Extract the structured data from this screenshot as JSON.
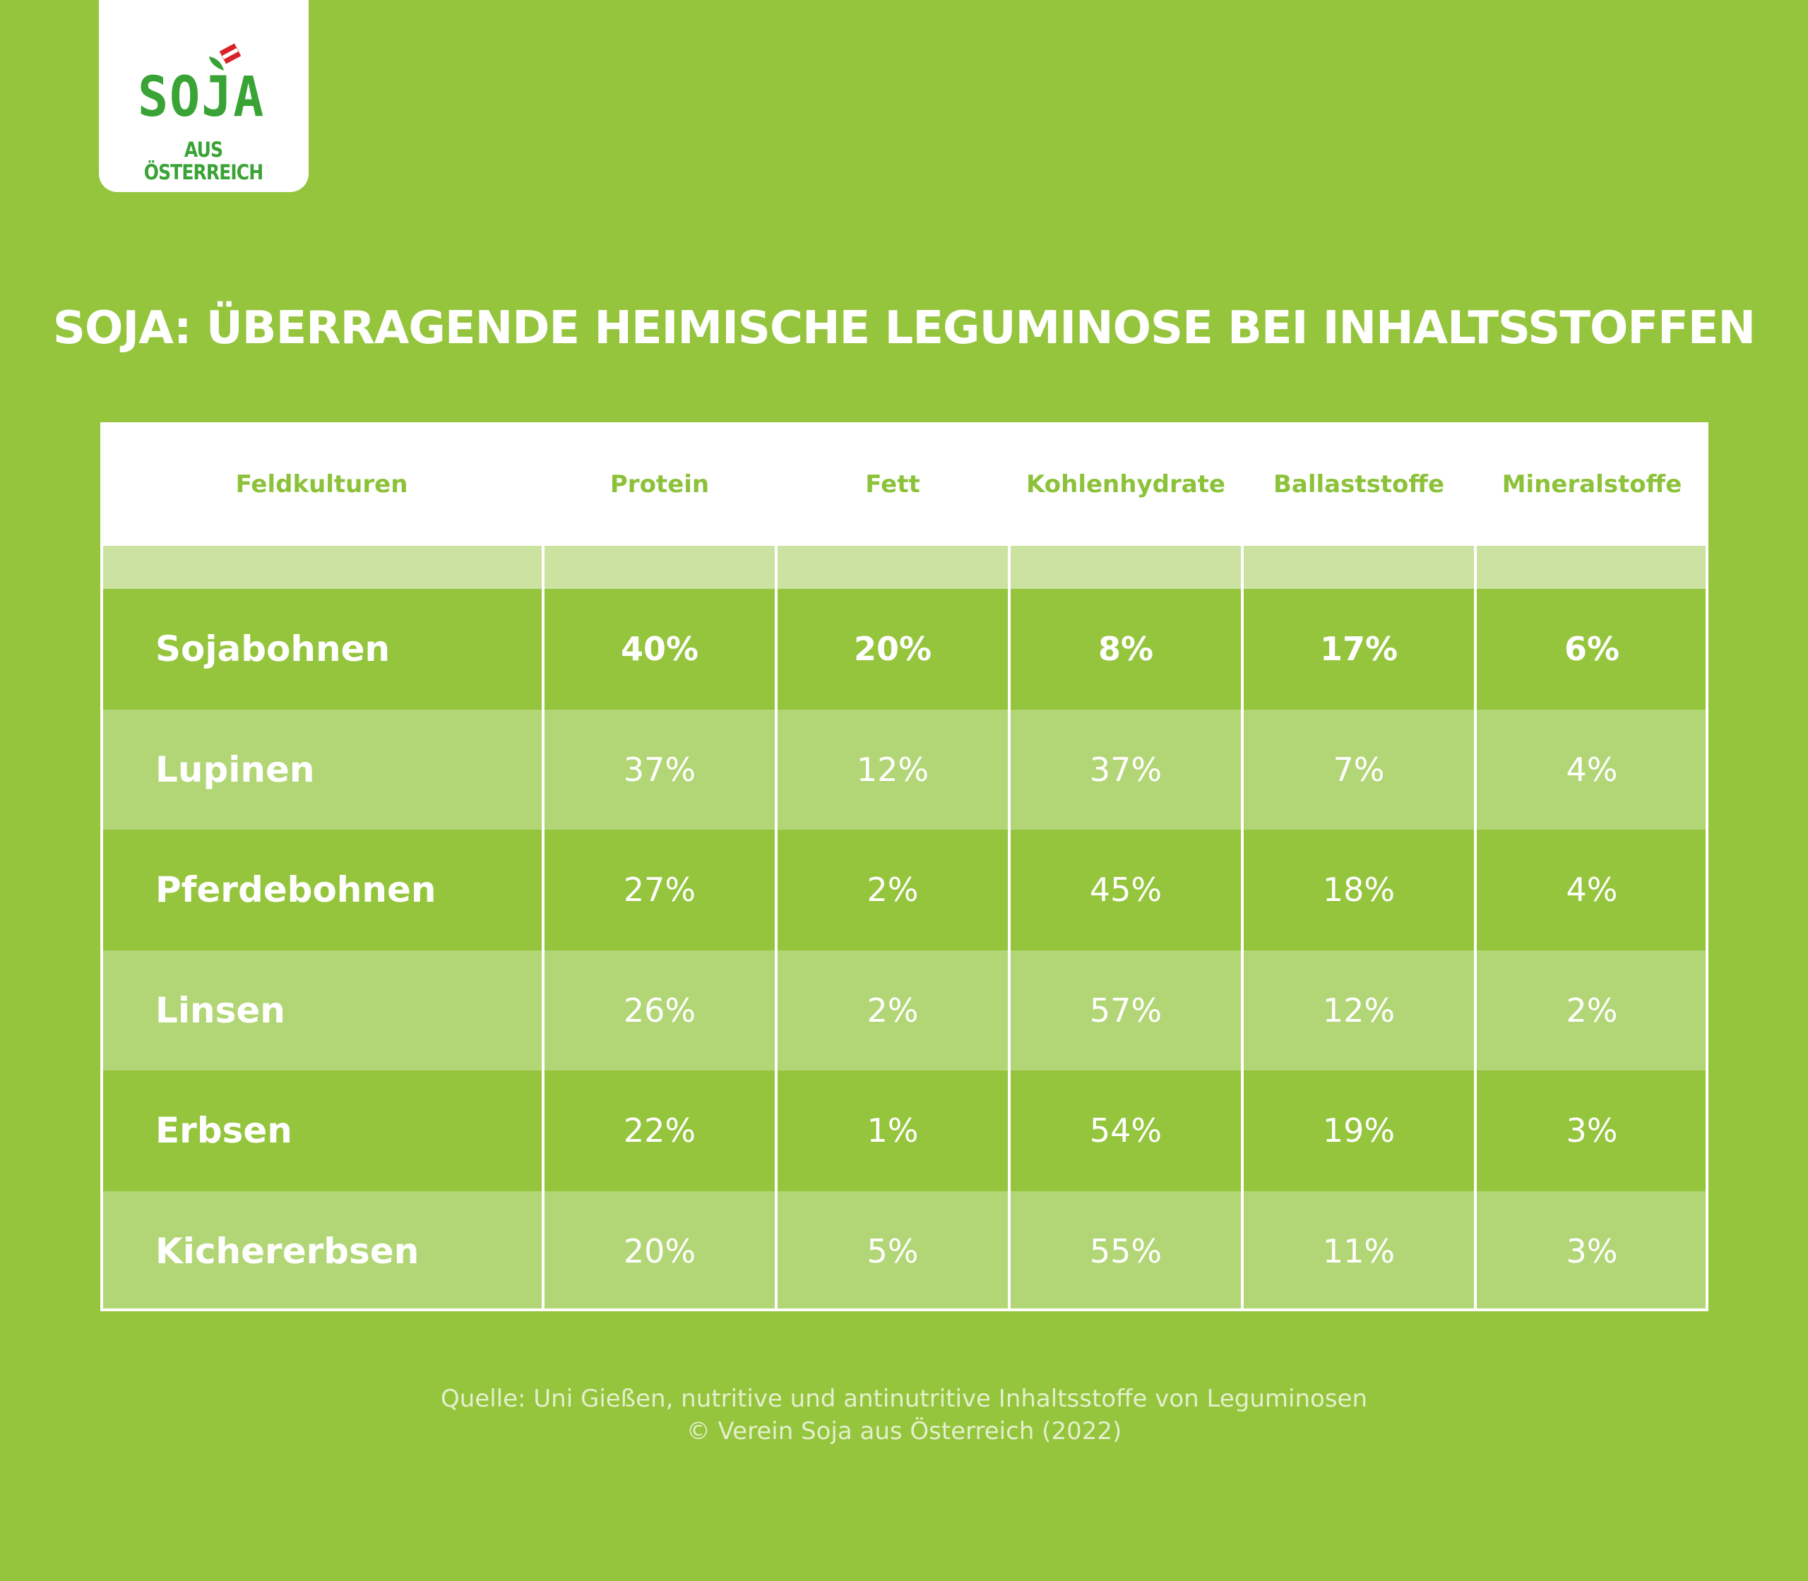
{
  "logo": {
    "brand": "SOJA",
    "subline": "AUS ÖSTERREICH"
  },
  "title": "SOJA: ÜBERRAGENDE HEIMISCHE LEGUMINOSE BEI INHALTSSTOFFEN",
  "chart_data": {
    "type": "table",
    "columns": [
      "Feldkulturen",
      "Protein",
      "Fett",
      "Kohlenhydrate",
      "Ballaststoffe",
      "Mineralstoffe"
    ],
    "rows": [
      {
        "crop": "Sojabohnen",
        "values": [
          "40%",
          "20%",
          "8%",
          "17%",
          "6%"
        ],
        "highlight": true
      },
      {
        "crop": "Lupinen",
        "values": [
          "37%",
          "12%",
          "37%",
          "7%",
          "4%"
        ]
      },
      {
        "crop": "Pferdebohnen",
        "values": [
          "27%",
          "2%",
          "45%",
          "18%",
          "4%"
        ]
      },
      {
        "crop": "Linsen",
        "values": [
          "26%",
          "2%",
          "57%",
          "12%",
          "2%"
        ]
      },
      {
        "crop": "Erbsen",
        "values": [
          "22%",
          "1%",
          "54%",
          "19%",
          "3%"
        ]
      },
      {
        "crop": "Kichererbsen",
        "values": [
          "20%",
          "5%",
          "55%",
          "11%",
          "3%"
        ]
      }
    ]
  },
  "source": {
    "line1": "Quelle: Uni Gießen, nutritive und antinutritive Inhaltsstoffe von Leguminosen",
    "line2": "© Verein Soja aus Österreich (2022)"
  },
  "colors": {
    "background": "#95c43d",
    "row_dark": "#95c43d",
    "row_light": "#b2d676",
    "spacer": "#cbe2a0",
    "header_text": "#8cc23a",
    "logo_green": "#3aa335",
    "flag_red": "#d8232a"
  }
}
